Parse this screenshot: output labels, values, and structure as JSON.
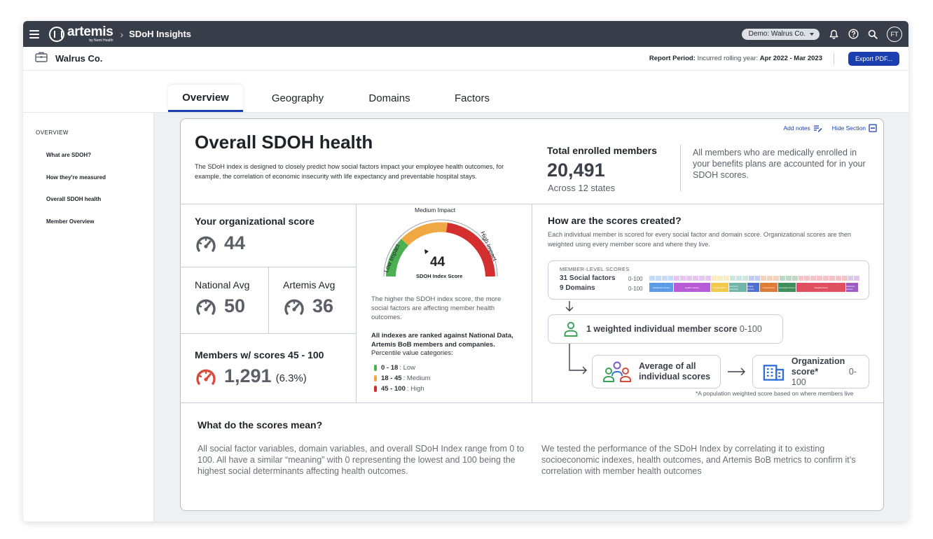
{
  "topbar": {
    "app_name": "artemis",
    "app_tagline": "by Nomi Health",
    "breadcrumb": "SDoH Insights",
    "demo_select": "Demo: Walrus Co.",
    "avatar_initials": "FT"
  },
  "subbar": {
    "company": "Walrus Co.",
    "report_period_label": "Report Period:",
    "report_period_text": "Incurred rolling year:",
    "report_period_range": "Apr 2022 - Mar 2023",
    "export_label": "Export PDF..."
  },
  "tabs": [
    {
      "label": "Overview",
      "active": true
    },
    {
      "label": "Geography",
      "active": false
    },
    {
      "label": "Domains",
      "active": false
    },
    {
      "label": "Factors",
      "active": false
    }
  ],
  "sidebar": {
    "heading": "OVERVIEW",
    "items": [
      "What are SDOH?",
      "How they're measured",
      "Overall SDOH health",
      "Member Overview"
    ]
  },
  "card": {
    "add_notes": "Add notes",
    "hide_section": "Hide Section",
    "title": "Overall SDOH health",
    "intro": "The SDoH index is designed to closely predict how social factors impact your employee health outcomes, for example, the correlation of economic insecurity with life expectancy and preventable hospital stays.",
    "enrolled_title": "Total enrolled members",
    "enrolled_number": "20,491",
    "enrolled_sub": "Across 12 states",
    "enrolled_note": "All members who are medically enrolled in your benefits plans are accounted for in your SDOH scores."
  },
  "scores": {
    "org_label": "Your organizational score",
    "org_value": "44",
    "national_label": "National Avg",
    "national_value": "50",
    "artemis_label": "Artemis Avg",
    "artemis_value": "36",
    "members_label": "Members w/ scores 45 - 100",
    "members_value": "1,291",
    "members_pct": "(6.3%)"
  },
  "gauge": {
    "value": 44,
    "value_label": "44",
    "caption": "SDOH Index Score",
    "low_label": "Low Impact",
    "medium_label": "Medium Impact",
    "high_label": "High Impact",
    "colors": {
      "low": "#4caf50",
      "medium": "#f0a844",
      "high": "#d32f2f"
    },
    "description": "The higher the SDOH index score, the more social factors are affecting member health outcomes.",
    "rank_bold": "All indexes are ranked against National Data, Artemis BoB members and companies.",
    "rank_sub": "Percentile value categories:",
    "legend": [
      {
        "range": "0 - 18",
        "label": ": Low",
        "color": "#4caf50"
      },
      {
        "range": "18 - 45",
        "label": ": Medium",
        "color": "#f0a844"
      },
      {
        "range": "45 - 100",
        "label": ": High",
        "color": "#d32f2f"
      }
    ]
  },
  "how": {
    "title": "How are the scores created?",
    "text": "Each individual member is scored for every social factor and domain score. Organizational scores are then weighted using every member score and where they live.",
    "mls_heading": "MEMBER-LEVEL SCORES",
    "social_factors": "31 Social factors",
    "domains": "9 Domains",
    "range_a": "0-100",
    "range_b": "0-100",
    "domain_labels": [
      "Healthcare Access",
      "Health Literacy",
      "Transportation",
      "Economic Insecurity",
      "Digital Access",
      "Food Access",
      "Amenities Access",
      "Neighborhood",
      "Childcare Access"
    ],
    "domain_colors": [
      "#5c9be6",
      "#b85bd6",
      "#f2c94c",
      "#6fb6a8",
      "#4d6fd6",
      "#e07b3a",
      "#3f8f5a",
      "#e04f5f",
      "#9e5bc4"
    ],
    "weighted_label": "1 weighted individual member score",
    "weighted_range": "0-100",
    "average_label": "Average of all individual scores",
    "org_score_label": "Organization score*",
    "org_score_range": "0-100",
    "footnote": "*A population weighted score based on where members live"
  },
  "meaning": {
    "title": "What do the scores mean?",
    "left": "All social factor variables, domain variables, and overall SDoH Index range from 0 to 100. All have a similar “meaning” with 0 representing the lowest and 100 being the highest social determinants affecting health outcomes.",
    "right": "We tested the performance of the SDoH Index by correlating it to existing socioeconomic indexes, health outcomes, and Artemis BoB metrics to confirm it’s correlation with member health outcomes"
  }
}
